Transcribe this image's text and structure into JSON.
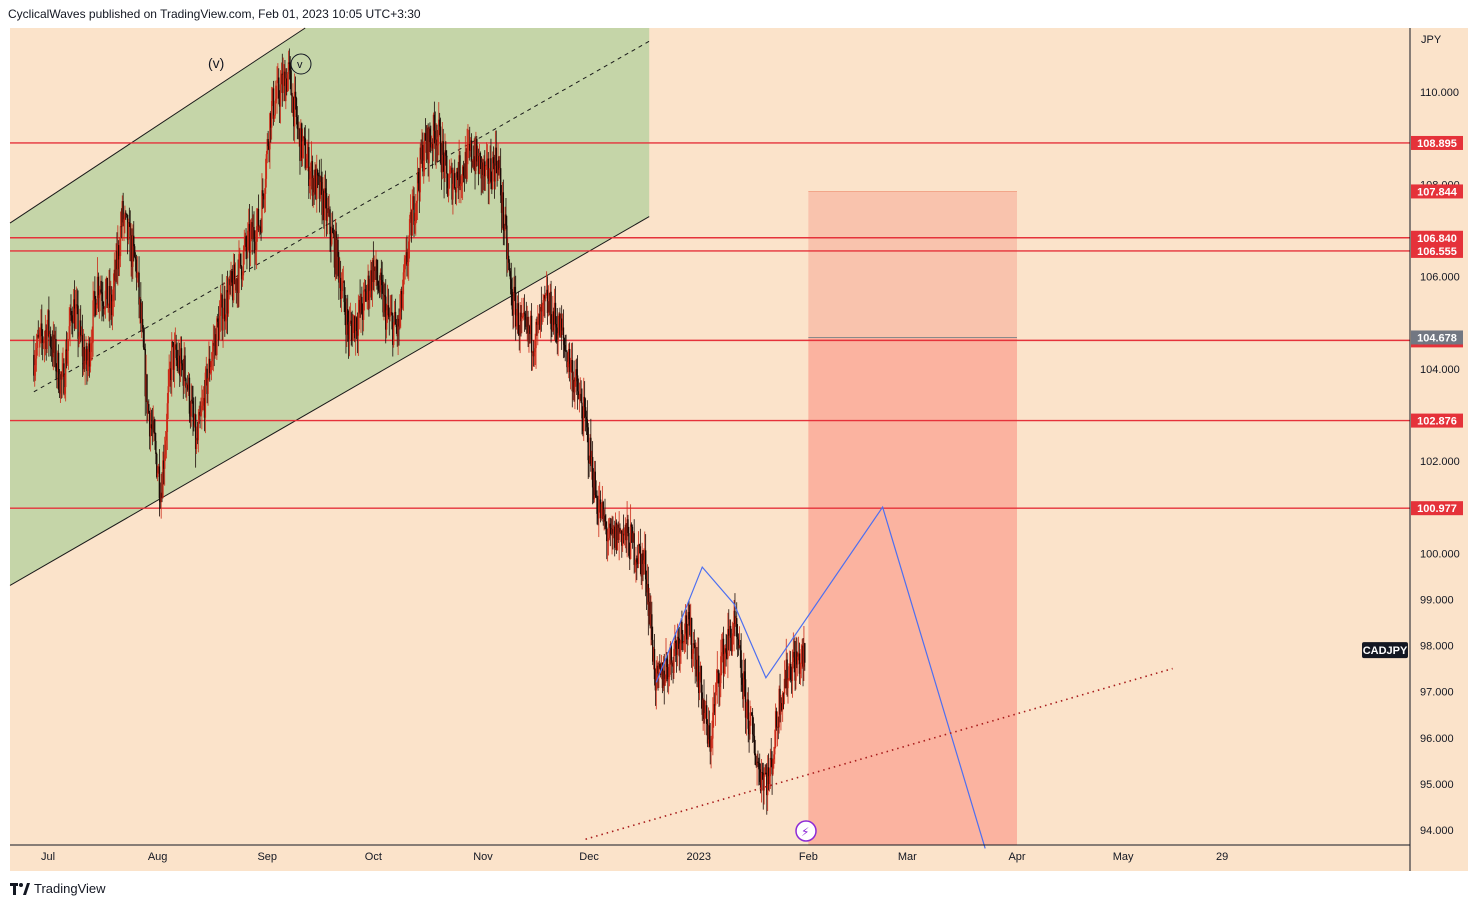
{
  "header": {
    "text": "CyclicalWaves published on TradingView.com, Feb 01, 2023 10:05 UTC+3:30"
  },
  "footer": {
    "brand": "TradingView"
  },
  "colors": {
    "background": "#fbe3ca",
    "channel_fill": "#c5d5a8",
    "level_line": "#e5323a",
    "bull_candle": "#cc2a18",
    "bear_candle": "#1a0a06",
    "projection_line": "#4d6ff0",
    "target_zone": "#fbb3a0",
    "target_zone_top": "#f9c3ad",
    "trendline_dotted": "#a81b1b",
    "symbol_badge": "#131722",
    "level_badge": "#e5323a",
    "grey_badge": "#727782"
  },
  "chart_data": {
    "type": "candlestick",
    "symbol": "CADJPY",
    "currency_label": "JPY",
    "y_ticks": [
      "94.000",
      "95.000",
      "96.000",
      "97.000",
      "98.000",
      "99.000",
      "100.000",
      "102.000",
      "104.000",
      "106.000",
      "108.000",
      "110.000"
    ],
    "x_ticks": [
      "Jul",
      "Aug",
      "Sep",
      "Oct",
      "Nov",
      "Dec",
      "2023",
      "Feb",
      "Mar",
      "Apr",
      "May",
      "29"
    ],
    "horizontal_levels": [
      {
        "label": "108.895",
        "value": 108.895
      },
      {
        "label": "106.840",
        "value": 106.84
      },
      {
        "label": "106.555",
        "value": 106.555
      },
      {
        "label": "104.615",
        "value": 104.615
      },
      {
        "label": "102.876",
        "value": 102.876
      },
      {
        "label": "100.977",
        "value": 100.977
      }
    ],
    "marked_levels": [
      {
        "label": "107.844",
        "value": 107.844
      },
      {
        "label": "104.678",
        "value": 104.678
      }
    ],
    "wave_label": "(v)",
    "circled_label": "v",
    "price_path": [
      [
        "2022-06-27",
        104.3
      ],
      [
        "2022-07-01",
        104.9
      ],
      [
        "2022-07-05",
        103.6
      ],
      [
        "2022-07-08",
        105.4
      ],
      [
        "2022-07-12",
        104.0
      ],
      [
        "2022-07-15",
        105.9
      ],
      [
        "2022-07-19",
        105.3
      ],
      [
        "2022-07-22",
        107.3
      ],
      [
        "2022-07-26",
        106.2
      ],
      [
        "2022-07-29",
        103.3
      ],
      [
        "2022-08-02",
        101.4
      ],
      [
        "2022-08-05",
        104.3
      ],
      [
        "2022-08-09",
        103.9
      ],
      [
        "2022-08-12",
        102.3
      ],
      [
        "2022-08-16",
        104.2
      ],
      [
        "2022-08-19",
        105.2
      ],
      [
        "2022-08-23",
        105.9
      ],
      [
        "2022-08-26",
        106.6
      ],
      [
        "2022-08-30",
        107.2
      ],
      [
        "2022-09-02",
        109.6
      ],
      [
        "2022-09-07",
        110.4
      ],
      [
        "2022-09-10",
        109.0
      ],
      [
        "2022-09-14",
        108.1
      ],
      [
        "2022-09-17",
        107.6
      ],
      [
        "2022-09-21",
        106.3
      ],
      [
        "2022-09-24",
        104.8
      ],
      [
        "2022-09-28",
        105.3
      ],
      [
        "2022-10-01",
        106.2
      ],
      [
        "2022-10-05",
        105.1
      ],
      [
        "2022-10-08",
        104.8
      ],
      [
        "2022-10-12",
        107.3
      ],
      [
        "2022-10-15",
        108.7
      ],
      [
        "2022-10-19",
        109.2
      ],
      [
        "2022-10-22",
        108.0
      ],
      [
        "2022-10-26",
        108.3
      ],
      [
        "2022-10-29",
        108.7
      ],
      [
        "2022-11-02",
        108.1
      ],
      [
        "2022-11-05",
        108.6
      ],
      [
        "2022-11-09",
        105.6
      ],
      [
        "2022-11-12",
        104.8
      ],
      [
        "2022-11-16",
        104.7
      ],
      [
        "2022-11-19",
        105.4
      ],
      [
        "2022-11-23",
        104.8
      ],
      [
        "2022-11-26",
        104.0
      ],
      [
        "2022-11-30",
        102.8
      ],
      [
        "2022-12-03",
        101.2
      ],
      [
        "2022-12-07",
        100.2
      ],
      [
        "2022-12-10",
        100.5
      ],
      [
        "2022-12-14",
        100.1
      ],
      [
        "2022-12-17",
        99.7
      ],
      [
        "2022-12-20",
        97.1
      ],
      [
        "2022-12-24",
        97.7
      ],
      [
        "2022-12-28",
        98.5
      ],
      [
        "2022-12-31",
        97.9
      ],
      [
        "2023-01-04",
        95.8
      ],
      [
        "2023-01-07",
        97.6
      ],
      [
        "2023-01-11",
        98.4
      ],
      [
        "2023-01-14",
        96.9
      ],
      [
        "2023-01-18",
        95.3
      ],
      [
        "2023-01-21",
        95.1
      ],
      [
        "2023-01-24",
        96.9
      ],
      [
        "2023-01-27",
        97.6
      ],
      [
        "2023-01-31",
        97.7
      ]
    ],
    "projection_path": [
      [
        "2022-12-20",
        97.2
      ],
      [
        "2023-01-02",
        99.7
      ],
      [
        "2023-01-11",
        98.9
      ],
      [
        "2023-01-20",
        97.3
      ],
      [
        "2023-02-22",
        101.0
      ],
      [
        "2023-03-23",
        93.6
      ]
    ],
    "channel": {
      "upper": [
        [
          "2022-06-27",
          107.5
        ],
        [
          "2022-09-10",
          111.3
        ]
      ],
      "lower": [
        [
          "2022-06-27",
          99.6
        ],
        [
          "2022-11-08",
          104.2
        ],
        [
          "2022-12-18",
          107.3
        ]
      ],
      "mid": [
        [
          "2022-06-27",
          103.5
        ],
        [
          "2022-12-18",
          111.1
        ]
      ],
      "box_end": "2022-12-18"
    },
    "target_zone": {
      "from": "2023-02-01",
      "to": "2023-04-01",
      "top": 107.844,
      "mid": 104.678
    },
    "trendline": [
      [
        "2022-11-30",
        93.8
      ],
      [
        "2023-05-15",
        97.5
      ]
    ]
  }
}
